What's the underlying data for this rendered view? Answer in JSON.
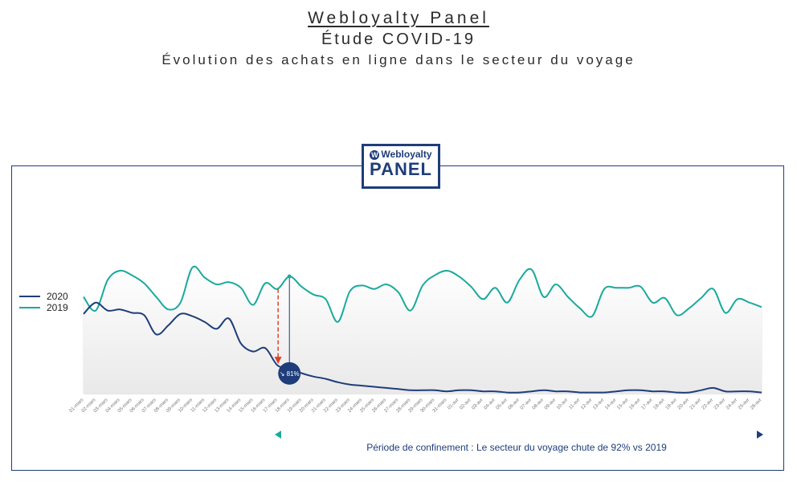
{
  "header": {
    "line1": "Webloyalty Panel",
    "line2": "Étude COVID-19",
    "line3": "Évolution des achats en ligne dans le secteur du voyage"
  },
  "logo": {
    "brand": "Webloyalty",
    "product": "PANEL",
    "icon": "w-circle-icon"
  },
  "chart_data": {
    "type": "line",
    "title": "",
    "xlabel": "",
    "ylabel": "",
    "grid": "vertical",
    "legend_position": "left",
    "x": [
      "01-mars",
      "02-mars",
      "03-mars",
      "04-mars",
      "05-mars",
      "06-mars",
      "07-mars",
      "08-mars",
      "09-mars",
      "10-mars",
      "11-mars",
      "12-mars",
      "13-mars",
      "14-mars",
      "15-mars",
      "16-mars",
      "17-mars",
      "18-mars",
      "19-mars",
      "20-mars",
      "21-mars",
      "22-mars",
      "23-mars",
      "24-mars",
      "25-mars",
      "26-mars",
      "27-mars",
      "28-mars",
      "29-mars",
      "30-mars",
      "31-mars",
      "01-avr",
      "02-avr",
      "03-avr",
      "04-avr",
      "05-avr",
      "06-avr",
      "07-avr",
      "08-avr",
      "09-avr",
      "10-avr",
      "11-avr",
      "12-avr",
      "13-avr",
      "14-avr",
      "15-avr",
      "16-avr",
      "17-avr",
      "18-avr",
      "19-avr",
      "20-avr",
      "21-avr",
      "22-avr",
      "23-avr",
      "24-avr",
      "25-avr",
      "26-avr"
    ],
    "series": [
      {
        "name": "2020",
        "color": "#1f3d7a",
        "values": [
          70,
          80,
          73,
          74,
          71,
          69,
          52,
          60,
          70,
          68,
          63,
          57,
          66,
          44,
          37,
          40,
          25,
          22,
          18,
          15,
          13,
          10,
          8,
          7,
          6,
          5,
          4,
          3,
          3,
          3,
          2,
          3,
          3,
          2,
          2,
          1,
          1,
          2,
          3,
          2,
          2,
          1,
          1,
          1,
          2,
          3,
          3,
          2,
          2,
          1,
          1,
          3,
          5,
          2,
          2,
          2,
          1
        ]
      },
      {
        "name": "2019",
        "color": "#1aaa9c",
        "values": [
          85,
          73,
          100,
          108,
          104,
          97,
          85,
          74,
          80,
          111,
          102,
          96,
          98,
          93,
          78,
          97,
          92,
          103,
          94,
          87,
          83,
          63,
          90,
          95,
          92,
          96,
          89,
          73,
          95,
          104,
          108,
          103,
          94,
          83,
          93,
          80,
          100,
          109,
          85,
          96,
          85,
          75,
          68,
          92,
          93,
          93,
          94,
          80,
          84,
          69,
          75,
          84,
          92,
          71,
          83,
          80,
          76
        ]
      }
    ],
    "ylim": [
      0,
      120
    ],
    "annotations": {
      "drop_badge": "↘ 81%",
      "period_caption": "Période de confinement : Le secteur du voyage chute de 92% vs 2019"
    }
  }
}
